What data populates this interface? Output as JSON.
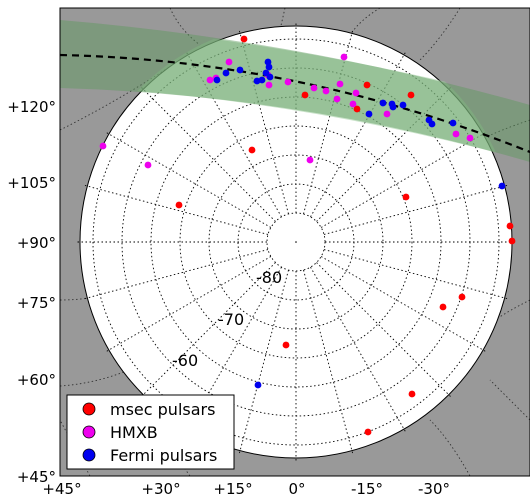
{
  "chart_data": {
    "type": "scatter",
    "projection": "polar sky map (south celestial pole)",
    "yticks": [
      "+45°",
      "+60°",
      "+75°",
      "+90°",
      "+105°",
      "+120°"
    ],
    "xticks": [
      "+45°",
      "+30°",
      "+15°",
      "0°",
      "-15°",
      "-30°"
    ],
    "declination_labels": [
      "-80",
      "-70",
      "-60"
    ],
    "grid": true,
    "legend_position": "lower-left",
    "series": [
      {
        "name": "msec pulsars",
        "color": "#ff0000",
        "points": [
          [
            244,
            39
          ],
          [
            367,
            85
          ],
          [
            411,
            95
          ],
          [
            305,
            95
          ],
          [
            357,
            109
          ],
          [
            252,
            150
          ],
          [
            406,
            197
          ],
          [
            179,
            205
          ],
          [
            510,
            226
          ],
          [
            512,
            241
          ],
          [
            462,
            297
          ],
          [
            443,
            307
          ],
          [
            286,
            345
          ],
          [
            412,
            394
          ],
          [
            368,
            432
          ]
        ]
      },
      {
        "name": "HMXB",
        "color": "#ee00ee",
        "points": [
          [
            344,
            57
          ],
          [
            229,
            62
          ],
          [
            210,
            80
          ],
          [
            216,
            78
          ],
          [
            268,
            75
          ],
          [
            288,
            82
          ],
          [
            314,
            88
          ],
          [
            326,
            91
          ],
          [
            340,
            84
          ],
          [
            356,
            93
          ],
          [
            337,
            99
          ],
          [
            353,
            104
          ],
          [
            387,
            114
          ],
          [
            456,
            134
          ],
          [
            470,
            138
          ],
          [
            103,
            146
          ],
          [
            148,
            165
          ],
          [
            310,
            160
          ],
          [
            269,
            85
          ]
        ]
      },
      {
        "name": "Fermi pulsars",
        "color": "#0000ee",
        "points": [
          [
            268,
            62
          ],
          [
            269,
            67
          ],
          [
            226,
            73
          ],
          [
            240,
            70
          ],
          [
            266,
            73
          ],
          [
            270,
            77
          ],
          [
            262,
            80
          ],
          [
            257,
            81
          ],
          [
            217,
            80
          ],
          [
            383,
            103
          ],
          [
            392,
            104
          ],
          [
            403,
            105
          ],
          [
            393,
            107
          ],
          [
            369,
            114
          ],
          [
            429,
            120
          ],
          [
            432,
            124
          ],
          [
            453,
            123
          ],
          [
            502,
            186
          ],
          [
            258,
            385
          ]
        ]
      }
    ]
  }
}
